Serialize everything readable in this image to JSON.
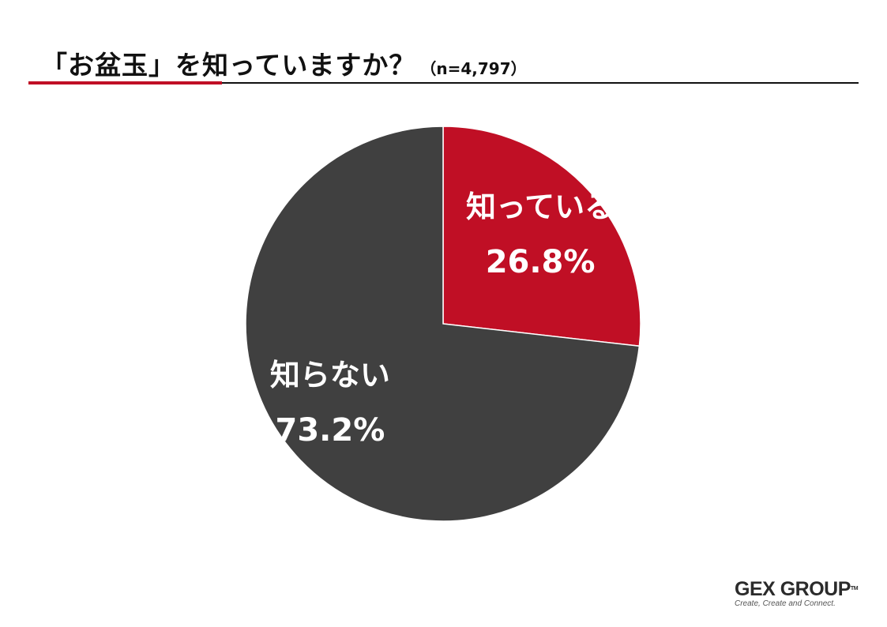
{
  "title": {
    "main": "「お盆玉」を知っていますか？",
    "sample": "（n=4,797）"
  },
  "chart_data": {
    "type": "pie",
    "start_angle_deg": 0,
    "direction": "clockwise",
    "slices": [
      {
        "label": "知っている",
        "value": 26.8,
        "value_label": "26.8%",
        "color": "#c00f25"
      },
      {
        "label": "知らない",
        "value": 73.2,
        "value_label": "73.2%",
        "color": "#404040"
      }
    ]
  },
  "logo": {
    "brand": "GEX GROUP",
    "tm": "TM",
    "tagline": "Create, Create and Connect."
  },
  "colors": {
    "accent": "#c00f25",
    "dark": "#404040",
    "text": "#111111"
  }
}
